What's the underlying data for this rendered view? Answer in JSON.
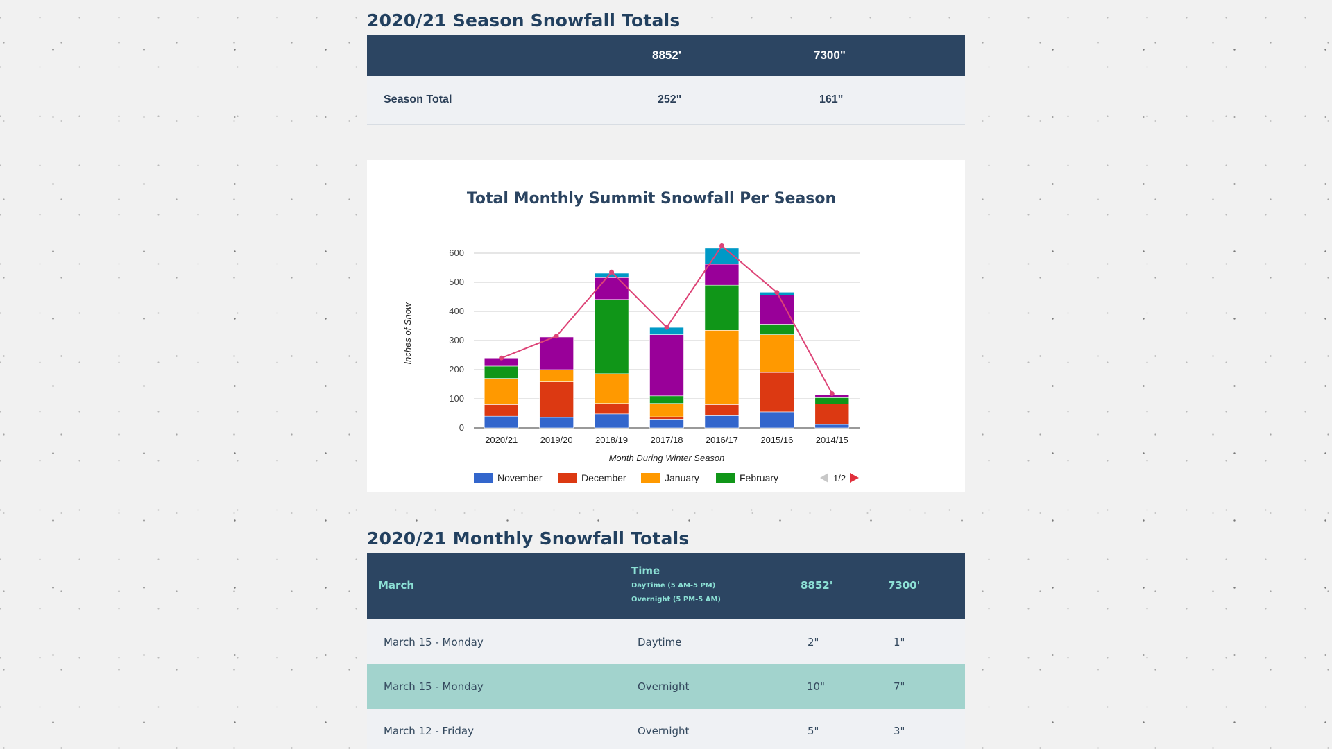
{
  "season": {
    "title": "2020/21 Season Snowfall Totals",
    "headers": [
      "",
      "8852'",
      "7300\""
    ],
    "row": {
      "label": "Season Total",
      "v1": "252\"",
      "v2": "161\""
    }
  },
  "chart": {
    "pager": "1/2"
  },
  "chart_data": {
    "type": "bar",
    "stacked": true,
    "title": "Total Monthly Summit Snowfall Per Season",
    "xlabel": "Month During Winter Season",
    "ylabel": "Inches of Snow",
    "ylim": [
      0,
      600
    ],
    "yticks": [
      0,
      100,
      200,
      300,
      400,
      500,
      600
    ],
    "categories": [
      "2020/21",
      "2019/20",
      "2018/19",
      "2017/18",
      "2016/17",
      "2015/16",
      "2014/15"
    ],
    "series": [
      {
        "name": "November",
        "color": "#3366cc",
        "values": [
          40,
          36,
          48,
          30,
          42,
          55,
          12
        ]
      },
      {
        "name": "December",
        "color": "#dc3912",
        "values": [
          40,
          122,
          36,
          8,
          38,
          135,
          70
        ]
      },
      {
        "name": "January",
        "color": "#ff9900",
        "values": [
          90,
          42,
          102,
          46,
          255,
          130,
          0
        ]
      },
      {
        "name": "February",
        "color": "#109618",
        "values": [
          42,
          0,
          255,
          26,
          155,
          36,
          22
        ]
      },
      {
        "color": "#990099",
        "values": [
          28,
          112,
          75,
          210,
          72,
          100,
          10
        ]
      },
      {
        "color": "#0099c6",
        "values": [
          0,
          0,
          15,
          25,
          55,
          10,
          0
        ]
      }
    ],
    "line": {
      "color": "#dd4477",
      "values": [
        240,
        315,
        535,
        345,
        625,
        465,
        118
      ]
    },
    "legend_position": "bottom"
  },
  "monthly": {
    "title": "2020/21 Monthly Snowfall Totals",
    "headers": {
      "month": "March",
      "time": "Time",
      "time_sub1": "DayTime (5 AM-5 PM)",
      "time_sub2": "Overnight (5 PM-5 AM)",
      "c1": "8852'",
      "c2": "7300'"
    },
    "rows": [
      {
        "date": "March 15 - Monday",
        "time": "Daytime",
        "v1": "2\"",
        "v2": "1\""
      },
      {
        "date": "March 15 - Monday",
        "time": "Overnight",
        "v1": "10\"",
        "v2": "7\""
      },
      {
        "date": "March 12 - Friday",
        "time": "Overnight",
        "v1": "5\"",
        "v2": "3\""
      }
    ]
  }
}
